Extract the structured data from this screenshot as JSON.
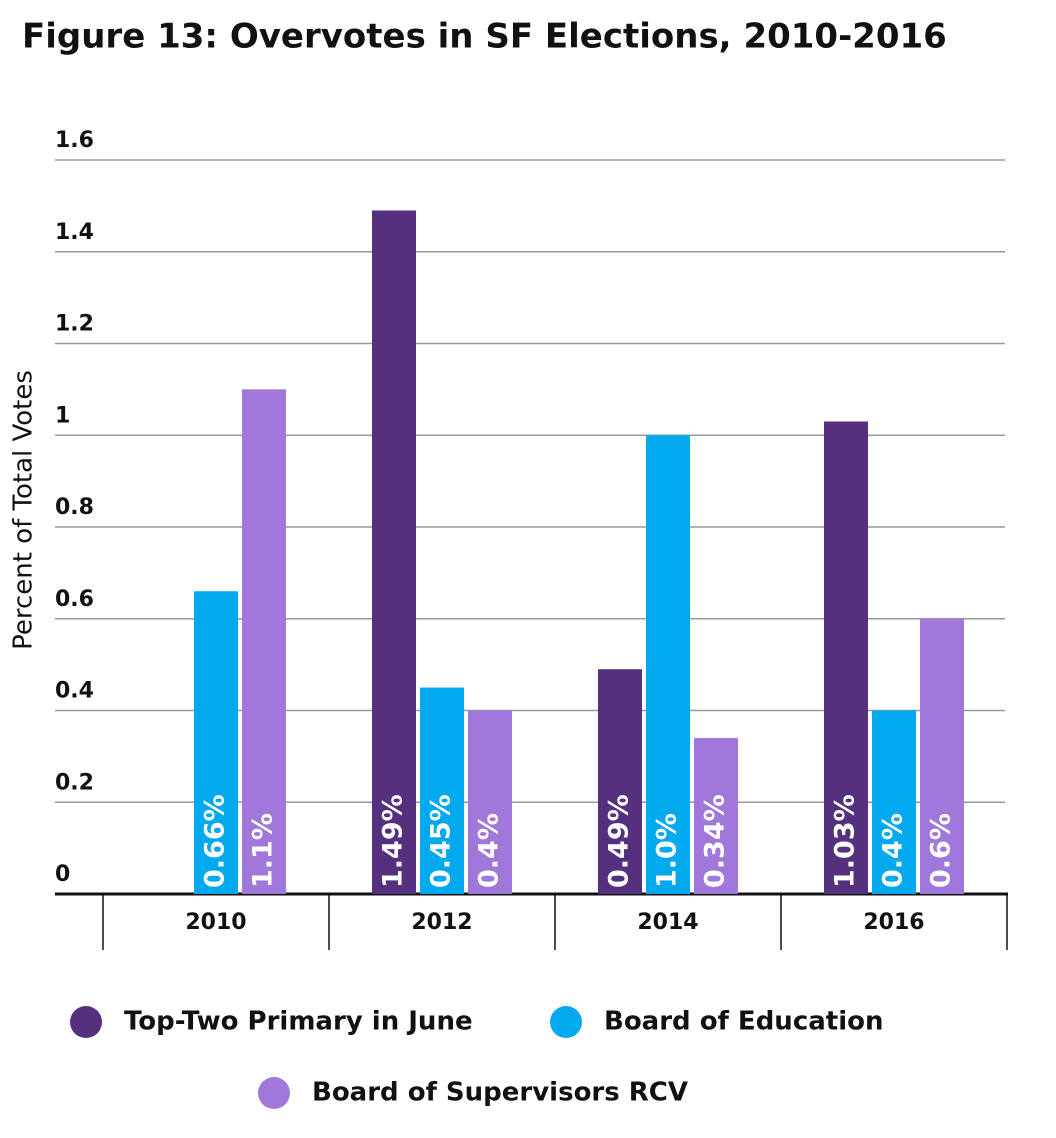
{
  "chart_data": {
    "type": "bar",
    "title": "Figure 13: Overvotes in SF Elections, 2010-2016",
    "y_label": "Percent of Total Votes",
    "categories": [
      "2010",
      "2012",
      "2014",
      "2016"
    ],
    "series": [
      {
        "name": "Top-Two Primary in June",
        "color": "#55307f",
        "values": [
          null,
          1.49,
          0.49,
          1.03
        ],
        "value_labels": [
          null,
          "1.49%",
          "0.49%",
          "1.03%"
        ]
      },
      {
        "name": "Board of Education",
        "color": "#03a9ee",
        "values": [
          0.66,
          0.45,
          1.0,
          0.4
        ],
        "value_labels": [
          "0.66%",
          "0.45%",
          "1.0%",
          "0.4%"
        ]
      },
      {
        "name": "Board of Supervisors RCV",
        "color": "#a078da",
        "values": [
          1.1,
          0.4,
          0.34,
          0.6
        ],
        "value_labels": [
          "1.1%",
          "0.4%",
          "0.34%",
          "0.6%"
        ]
      }
    ],
    "ylim": [
      0,
      1.6
    ],
    "yticks": [
      0,
      0.2,
      0.4,
      0.6,
      0.8,
      1,
      1.2,
      1.4,
      1.6
    ],
    "grid": true
  }
}
